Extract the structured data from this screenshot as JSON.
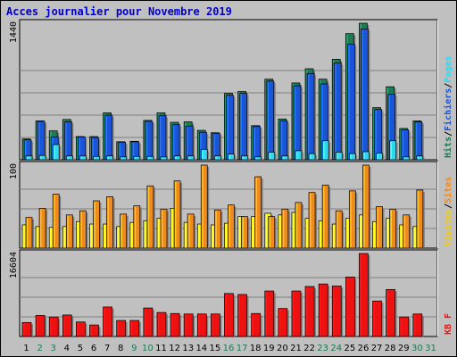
{
  "title": "Acces journalier pour Novembre 2019",
  "colors": {
    "hits": "#1d7a52",
    "files": "#1a55d8",
    "pages": "#33d6f0",
    "visits": "#ee8a1e",
    "sites": "#ffee22",
    "kb": "#ee1111",
    "weekend_day": "#1d7a52",
    "week_day": "#000000"
  },
  "chart_data": [
    {
      "type": "bar",
      "title": "Acces journalier pour Novembre 2019",
      "ymax_label": "1440",
      "ylim": [
        0,
        1440
      ],
      "legend": [
        {
          "text": "Hits",
          "color": "#1d7a52"
        },
        {
          "text": "/",
          "color": "#000000"
        },
        {
          "text": "Fichiers",
          "color": "#1a55d8"
        },
        {
          "text": "/",
          "color": "#000000"
        },
        {
          "text": "Pages",
          "color": "#33d6f0"
        }
      ],
      "categories": [
        "1",
        "2",
        "3",
        "4",
        "5",
        "6",
        "7",
        "8",
        "9",
        "10",
        "11",
        "12",
        "13",
        "14",
        "15",
        "16",
        "17",
        "18",
        "19",
        "20",
        "21",
        "22",
        "23",
        "24",
        "25",
        "26",
        "27",
        "28",
        "29",
        "30",
        "31"
      ],
      "series": [
        {
          "name": "Hits",
          "values": [
            220,
            410,
            305,
            425,
            245,
            245,
            495,
            190,
            195,
            415,
            495,
            395,
            400,
            310,
            285,
            700,
            720,
            360,
            850,
            430,
            810,
            960,
            850,
            1060,
            1330,
            1440,
            550,
            770,
            330,
            410,
            0
          ]
        },
        {
          "name": "Fichiers",
          "values": [
            210,
            405,
            240,
            400,
            240,
            235,
            470,
            185,
            190,
            405,
            465,
            370,
            355,
            290,
            280,
            680,
            700,
            350,
            830,
            410,
            780,
            910,
            800,
            1020,
            1220,
            1380,
            530,
            690,
            315,
            400,
            0
          ]
        },
        {
          "name": "Pages",
          "values": [
            40,
            45,
            160,
            40,
            40,
            35,
            40,
            30,
            35,
            35,
            30,
            40,
            40,
            110,
            40,
            60,
            40,
            30,
            80,
            40,
            95,
            65,
            200,
            80,
            65,
            85,
            70,
            200,
            30,
            40,
            0
          ]
        }
      ]
    },
    {
      "type": "bar",
      "ymax_label": "100",
      "ylim": [
        0,
        100
      ],
      "legend": [
        {
          "text": "Visites",
          "color": "#eecc22"
        },
        {
          "text": "/",
          "color": "#000000"
        },
        {
          "text": "Sites",
          "color": "#ee8a1e"
        }
      ],
      "categories": [
        "1",
        "2",
        "3",
        "4",
        "5",
        "6",
        "7",
        "8",
        "9",
        "10",
        "11",
        "12",
        "13",
        "14",
        "15",
        "16",
        "17",
        "18",
        "19",
        "20",
        "21",
        "22",
        "23",
        "24",
        "25",
        "26",
        "27",
        "28",
        "29",
        "30",
        "31"
      ],
      "series": [
        {
          "name": "Visites",
          "values": [
            28,
            26,
            25,
            26,
            32,
            29,
            29,
            26,
            31,
            33,
            36,
            48,
            31,
            29,
            28,
            30,
            38,
            38,
            42,
            40,
            43,
            36,
            33,
            29,
            36,
            40,
            32,
            36,
            28,
            26,
            0
          ]
        },
        {
          "name": "Sites",
          "values": [
            37,
            48,
            65,
            40,
            45,
            57,
            62,
            41,
            51,
            75,
            47,
            81,
            41,
            100,
            46,
            52,
            38,
            86,
            38,
            47,
            55,
            67,
            76,
            45,
            69,
            100,
            50,
            47,
            40,
            70,
            0
          ]
        }
      ]
    },
    {
      "type": "bar",
      "ymax_label": "16604",
      "ylim": [
        0,
        16604
      ],
      "legend": [
        {
          "text": "KB F",
          "color": "#ee1111"
        }
      ],
      "categories": [
        "1",
        "2",
        "3",
        "4",
        "5",
        "6",
        "7",
        "8",
        "9",
        "10",
        "11",
        "12",
        "13",
        "14",
        "15",
        "16",
        "17",
        "18",
        "19",
        "20",
        "21",
        "22",
        "23",
        "24",
        "25",
        "26",
        "27",
        "28",
        "29",
        "30",
        "31"
      ],
      "series": [
        {
          "name": "KB F",
          "values": [
            2800,
            4200,
            3900,
            4300,
            2900,
            2300,
            5900,
            3200,
            3200,
            5700,
            4800,
            4600,
            4500,
            4500,
            4500,
            8600,
            8400,
            4600,
            9100,
            5600,
            9100,
            10000,
            10500,
            10100,
            11900,
            16604,
            7100,
            9400,
            3900,
            4500,
            0
          ]
        }
      ]
    }
  ],
  "day_labels": [
    {
      "text": "1",
      "weekend": false
    },
    {
      "text": "2",
      "weekend": true
    },
    {
      "text": "3",
      "weekend": true
    },
    {
      "text": "4",
      "weekend": false
    },
    {
      "text": "5",
      "weekend": false
    },
    {
      "text": "6",
      "weekend": false
    },
    {
      "text": "7",
      "weekend": false
    },
    {
      "text": "8",
      "weekend": false
    },
    {
      "text": "9",
      "weekend": true
    },
    {
      "text": "10",
      "weekend": true
    },
    {
      "text": "11",
      "weekend": false
    },
    {
      "text": "12",
      "weekend": false
    },
    {
      "text": "13",
      "weekend": false
    },
    {
      "text": "14",
      "weekend": false
    },
    {
      "text": "15",
      "weekend": false
    },
    {
      "text": "16",
      "weekend": true
    },
    {
      "text": "17",
      "weekend": true
    },
    {
      "text": "18",
      "weekend": false
    },
    {
      "text": "19",
      "weekend": false
    },
    {
      "text": "20",
      "weekend": false
    },
    {
      "text": "21",
      "weekend": false
    },
    {
      "text": "22",
      "weekend": false
    },
    {
      "text": "23",
      "weekend": true
    },
    {
      "text": "24",
      "weekend": true
    },
    {
      "text": "25",
      "weekend": false
    },
    {
      "text": "26",
      "weekend": false
    },
    {
      "text": "27",
      "weekend": false
    },
    {
      "text": "28",
      "weekend": false
    },
    {
      "text": "29",
      "weekend": false
    },
    {
      "text": "30",
      "weekend": true
    },
    {
      "text": "31",
      "weekend": true
    }
  ]
}
